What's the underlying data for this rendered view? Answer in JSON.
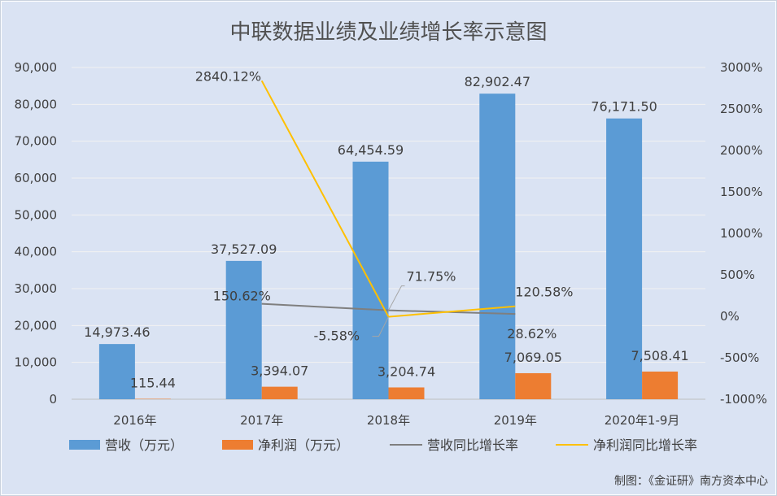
{
  "chart_data": {
    "type": "bar",
    "title": "中联数据业绩及业绩增长率示意图",
    "categories": [
      "2016年",
      "2017年",
      "2018年",
      "2019年",
      "2020年1-9月"
    ],
    "series": [
      {
        "name": "营收（万元）",
        "kind": "bar",
        "axis": "left",
        "color": "#5b9bd5",
        "values": [
          14973.46,
          37527.09,
          64454.59,
          82902.47,
          76171.5
        ],
        "labels": [
          "14,973.46",
          "37,527.09",
          "64,454.59",
          "82,902.47",
          "76,171.50"
        ]
      },
      {
        "name": "净利润（万元）",
        "kind": "bar",
        "axis": "left",
        "color": "#ed7d31",
        "values": [
          115.44,
          3394.07,
          3204.74,
          7069.05,
          7508.41
        ],
        "labels": [
          "115.44",
          "3,394.07",
          "3,204.74",
          "7,069.05",
          "7,508.41"
        ]
      },
      {
        "name": "营收同比增长率",
        "kind": "line",
        "axis": "right",
        "color": "#7f7f7f",
        "values": [
          null,
          150.62,
          71.75,
          28.62,
          null
        ],
        "labels": [
          null,
          "150.62%",
          "71.75%",
          "28.62%",
          null
        ]
      },
      {
        "name": "净利润同比增长率",
        "kind": "line",
        "axis": "right",
        "color": "#ffc000",
        "values": [
          null,
          2840.12,
          -5.58,
          120.58,
          null
        ],
        "labels": [
          null,
          "2840.12%",
          "-5.58%",
          "120.58%",
          null
        ]
      }
    ],
    "y_left": {
      "min": 0,
      "max": 90000,
      "ticks": [
        0,
        10000,
        20000,
        30000,
        40000,
        50000,
        60000,
        70000,
        80000,
        90000
      ],
      "tick_labels": [
        "0",
        "10,000",
        "20,000",
        "30,000",
        "40,000",
        "50,000",
        "60,000",
        "70,000",
        "80,000",
        "90,000"
      ]
    },
    "y_right": {
      "min": -1000,
      "max": 3000,
      "ticks": [
        -1000,
        -500,
        0,
        500,
        1000,
        1500,
        2000,
        2500,
        3000
      ],
      "tick_labels": [
        "-1000%",
        "-500%",
        "0%",
        "500%",
        "1000%",
        "1500%",
        "2000%",
        "2500%",
        "3000%"
      ]
    },
    "grid": true,
    "legend": "bottom",
    "background": "#dae3f3"
  },
  "credit": "制图：《金证研》南方资本中心"
}
